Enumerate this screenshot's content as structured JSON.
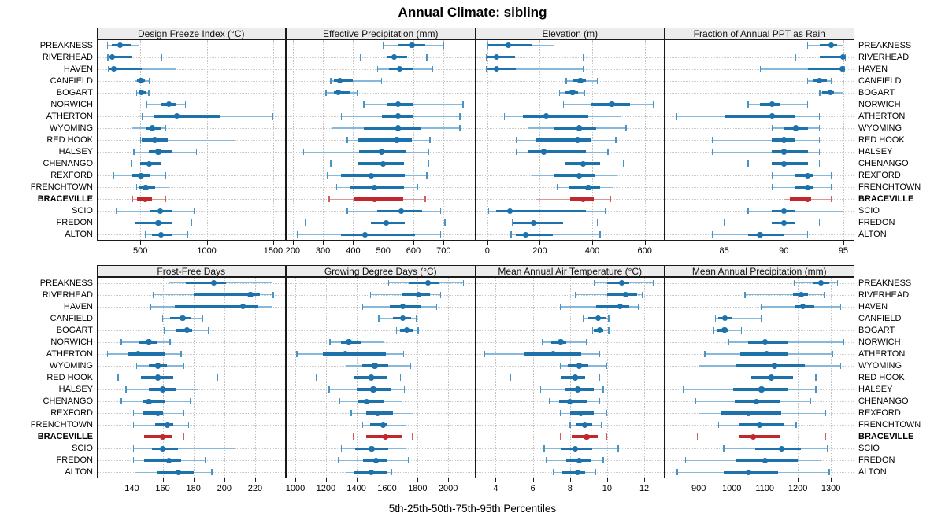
{
  "title": "Annual Climate: sibling",
  "caption": "5th-25th-50th-75th-95th Percentiles",
  "highlight_site": "BRACEVILLE",
  "colors": {
    "blue": "#1e72ac",
    "blue_thin": "#85b8da",
    "blue_cap": "#4a94c4",
    "red": "#c0282d",
    "red_thin": "#dd9793",
    "red_cap": "#cd5f5e",
    "strip_bg": "#ececec",
    "grid": "#c6c6c6",
    "border": "#1a1a1a",
    "text": "#000000"
  },
  "sites": [
    "PREAKNESS",
    "RIVERHEAD",
    "HAVEN",
    "CANFIELD",
    "BOGART",
    "NORWICH",
    "ATHERTON",
    "WYOMING",
    "RED HOOK",
    "HALSEY",
    "CHENANGO",
    "REXFORD",
    "FRENCHTOWN",
    "BRACEVILLE",
    "SCIO",
    "FREDON",
    "ALTON"
  ],
  "chart_data": {
    "type": "dotplot",
    "subtype": "percentile-intervals",
    "percentiles": [
      5,
      25,
      50,
      75,
      95
    ],
    "legend_position": "none",
    "grid": "dotted",
    "panels": [
      {
        "title": "Design Freeze Index (°C)",
        "row": 0,
        "col": 0,
        "xlim": [
          170,
          1595
        ],
        "ticks": [
          500,
          1000,
          1500
        ],
        "values": [
          [
            250,
            285,
            350,
            430,
            490
          ],
          [
            255,
            265,
            290,
            440,
            660
          ],
          [
            260,
            262,
            300,
            510,
            770
          ],
          [
            460,
            475,
            505,
            535,
            570
          ],
          [
            470,
            485,
            510,
            540,
            565
          ],
          [
            545,
            650,
            715,
            765,
            840
          ],
          [
            515,
            600,
            775,
            1100,
            1500
          ],
          [
            435,
            540,
            590,
            650,
            690
          ],
          [
            500,
            510,
            610,
            705,
            1215
          ],
          [
            450,
            565,
            635,
            735,
            925
          ],
          [
            430,
            500,
            565,
            650,
            800
          ],
          [
            300,
            435,
            505,
            575,
            690
          ],
          [
            470,
            495,
            540,
            610,
            715
          ],
          [
            440,
            475,
            535,
            585,
            690
          ],
          [
            320,
            575,
            650,
            740,
            905
          ],
          [
            345,
            455,
            635,
            735,
            885
          ],
          [
            540,
            585,
            655,
            735,
            860
          ]
        ]
      },
      {
        "title": "Effective Precipitation (mm)",
        "row": 0,
        "col": 1,
        "xlim": [
          177,
          805
        ],
        "ticks": [
          200,
          300,
          400,
          500,
          600,
          700
        ],
        "values": [
          [
            500,
            550,
            595,
            640,
            700
          ],
          [
            425,
            510,
            535,
            580,
            645
          ],
          [
            480,
            520,
            555,
            600,
            665
          ],
          [
            325,
            335,
            355,
            400,
            495
          ],
          [
            310,
            335,
            350,
            390,
            415
          ],
          [
            435,
            510,
            550,
            600,
            765
          ],
          [
            360,
            495,
            550,
            600,
            755
          ],
          [
            330,
            435,
            550,
            625,
            755
          ],
          [
            380,
            415,
            545,
            595,
            655
          ],
          [
            235,
            420,
            495,
            575,
            650
          ],
          [
            325,
            415,
            500,
            570,
            650
          ],
          [
            315,
            360,
            460,
            570,
            645
          ],
          [
            345,
            390,
            470,
            570,
            615
          ],
          [
            320,
            405,
            470,
            565,
            640
          ],
          [
            380,
            480,
            560,
            630,
            690
          ],
          [
            240,
            460,
            510,
            570,
            705
          ],
          [
            215,
            360,
            440,
            605,
            690
          ]
        ]
      },
      {
        "title": "Elevation (m)",
        "row": 0,
        "col": 2,
        "xlim": [
          -46,
          676
        ],
        "ticks": [
          0,
          200,
          400,
          600
        ],
        "values": [
          [
            0,
            5,
            80,
            170,
            255
          ],
          [
            -5,
            0,
            35,
            105,
            365
          ],
          [
            -5,
            0,
            35,
            110,
            365
          ],
          [
            300,
            325,
            355,
            375,
            420
          ],
          [
            275,
            295,
            325,
            345,
            370
          ],
          [
            290,
            395,
            475,
            545,
            635
          ],
          [
            65,
            135,
            225,
            385,
            510
          ],
          [
            155,
            255,
            350,
            415,
            530
          ],
          [
            110,
            185,
            345,
            395,
            490
          ],
          [
            110,
            155,
            215,
            375,
            460
          ],
          [
            155,
            295,
            365,
            430,
            520
          ],
          [
            170,
            255,
            350,
            410,
            495
          ],
          [
            265,
            310,
            385,
            430,
            480
          ],
          [
            185,
            315,
            365,
            405,
            470
          ],
          [
            5,
            35,
            85,
            375,
            450
          ],
          [
            95,
            100,
            175,
            290,
            420
          ],
          [
            90,
            110,
            145,
            250,
            430
          ]
        ]
      },
      {
        "title": "Fraction of Annual PPT as Rain",
        "row": 0,
        "col": 3,
        "xlim": [
          80,
          95.9
        ],
        "ticks": [
          85,
          90,
          95
        ],
        "values": [
          [
            92,
            93,
            94,
            94.5,
            95
          ],
          [
            91,
            93,
            95,
            95.1,
            95.2
          ],
          [
            88,
            92,
            94.9,
            95,
            95.1
          ],
          [
            92,
            92.4,
            93,
            93.6,
            94
          ],
          [
            93,
            93.2,
            93.9,
            94.2,
            95
          ],
          [
            87,
            88,
            89,
            89.7,
            92
          ],
          [
            81,
            85,
            89,
            91,
            93
          ],
          [
            89,
            90,
            91,
            92,
            93
          ],
          [
            84,
            89,
            90,
            91,
            93
          ],
          [
            84,
            89,
            90,
            92,
            93
          ],
          [
            87,
            89,
            90,
            92,
            93
          ],
          [
            89,
            91,
            92,
            92.5,
            94
          ],
          [
            89,
            91,
            92,
            92.5,
            94
          ],
          [
            90,
            90.5,
            92,
            92.3,
            94
          ],
          [
            87,
            89,
            90,
            91,
            95
          ],
          [
            85,
            89,
            90,
            91,
            93
          ],
          [
            84,
            87,
            88,
            90,
            92
          ]
        ]
      },
      {
        "title": "Frost-Free Days",
        "row": 1,
        "col": 0,
        "xlim": [
          117,
          240
        ],
        "ticks": [
          140,
          160,
          180,
          200,
          220
        ],
        "values": [
          [
            164,
            175,
            193,
            201,
            231
          ],
          [
            154,
            180,
            217,
            223,
            232
          ],
          [
            152,
            168,
            212,
            222,
            231
          ],
          [
            160,
            165,
            173,
            178,
            186
          ],
          [
            161,
            169,
            176,
            179,
            190
          ],
          [
            133,
            145,
            151,
            156,
            165
          ],
          [
            124,
            137,
            144,
            162,
            172
          ],
          [
            143,
            151,
            157,
            163,
            174
          ],
          [
            131,
            146,
            157,
            167,
            196
          ],
          [
            136,
            151,
            160,
            169,
            183
          ],
          [
            133,
            147,
            151,
            162,
            178
          ],
          [
            141,
            147,
            157,
            160,
            174
          ],
          [
            141,
            155,
            163,
            167,
            177
          ],
          [
            142,
            148,
            160,
            166,
            174
          ],
          [
            141,
            153,
            160,
            170,
            207
          ],
          [
            141,
            148,
            164,
            172,
            188
          ],
          [
            142,
            156,
            170,
            180,
            192
          ]
        ]
      },
      {
        "title": "Growing Degree Days (°C)",
        "row": 1,
        "col": 1,
        "xlim": [
          938,
          2177
        ],
        "ticks": [
          1000,
          1200,
          1400,
          1600,
          1800,
          2000
        ],
        "values": [
          [
            1610,
            1740,
            1870,
            1935,
            2100
          ],
          [
            1490,
            1700,
            1805,
            1880,
            1950
          ],
          [
            1440,
            1620,
            1705,
            1820,
            1925
          ],
          [
            1545,
            1640,
            1705,
            1755,
            1795
          ],
          [
            1660,
            1685,
            1730,
            1775,
            1805
          ],
          [
            1225,
            1300,
            1350,
            1430,
            1580
          ],
          [
            1010,
            1180,
            1325,
            1590,
            1710
          ],
          [
            1330,
            1440,
            1520,
            1610,
            1755
          ],
          [
            1135,
            1385,
            1495,
            1600,
            1690
          ],
          [
            1220,
            1400,
            1510,
            1630,
            1715
          ],
          [
            1290,
            1410,
            1465,
            1580,
            1700
          ],
          [
            1365,
            1465,
            1540,
            1640,
            1770
          ],
          [
            1440,
            1490,
            1575,
            1600,
            1725
          ],
          [
            1380,
            1465,
            1590,
            1700,
            1765
          ],
          [
            1300,
            1390,
            1500,
            1610,
            1725
          ],
          [
            1280,
            1445,
            1530,
            1595,
            1740
          ],
          [
            1330,
            1385,
            1495,
            1595,
            1630
          ]
        ]
      },
      {
        "title": "Mean Annual Air Temperature (°C)",
        "row": 1,
        "col": 2,
        "xlim": [
          2.9,
          13.1
        ],
        "ticks": [
          4,
          6,
          8,
          10,
          12
        ],
        "values": [
          [
            9.3,
            10,
            10.8,
            11.2,
            12.5
          ],
          [
            8.3,
            10,
            11,
            11.6,
            11.9
          ],
          [
            7.5,
            9.4,
            10.7,
            11.2,
            11.7
          ],
          [
            8.7,
            9,
            9.5,
            9.9,
            10.1
          ],
          [
            9.2,
            9.3,
            9.6,
            9.8,
            10.1
          ],
          [
            6.5,
            7,
            7.5,
            7.8,
            8.9
          ],
          [
            3.4,
            5.5,
            7.1,
            8.6,
            9.6
          ],
          [
            7.5,
            7.9,
            8.5,
            9,
            10
          ],
          [
            4.8,
            7.5,
            8.3,
            8.8,
            9.6
          ],
          [
            6.4,
            7.7,
            8.4,
            9.3,
            9.8
          ],
          [
            6.9,
            7.4,
            8,
            8.9,
            9.6
          ],
          [
            7.5,
            8,
            8.6,
            9.3,
            10
          ],
          [
            8,
            8.3,
            8.8,
            9.2,
            9.7
          ],
          [
            7.5,
            8.1,
            8.9,
            9.5,
            10
          ],
          [
            6.6,
            7.5,
            8.3,
            9.2,
            10.6
          ],
          [
            6.7,
            7.8,
            8.5,
            9.1,
            9.8
          ],
          [
            7.1,
            7.6,
            8.4,
            8.8,
            9.4
          ]
        ]
      },
      {
        "title": "Mean Annual Precipitation (mm)",
        "row": 1,
        "col": 3,
        "xlim": [
          797,
          1370
        ],
        "ticks": [
          900,
          1000,
          1100,
          1200,
          1300
        ],
        "values": [
          [
            1190,
            1245,
            1270,
            1295,
            1320
          ],
          [
            1040,
            1185,
            1210,
            1230,
            1280
          ],
          [
            1090,
            1190,
            1215,
            1250,
            1330
          ],
          [
            950,
            958,
            980,
            1000,
            1090
          ],
          [
            945,
            955,
            978,
            990,
            1030
          ],
          [
            990,
            1050,
            1100,
            1170,
            1340
          ],
          [
            918,
            1025,
            1105,
            1170,
            1305
          ],
          [
            900,
            1015,
            1130,
            1220,
            1330
          ],
          [
            955,
            1060,
            1120,
            1185,
            1255
          ],
          [
            852,
            1005,
            1090,
            1170,
            1255
          ],
          [
            890,
            1010,
            1075,
            1145,
            1240
          ],
          [
            900,
            965,
            1050,
            1150,
            1285
          ],
          [
            960,
            1020,
            1085,
            1160,
            1195
          ],
          [
            895,
            1020,
            1065,
            1145,
            1285
          ],
          [
            975,
            1070,
            1150,
            1210,
            1290
          ],
          [
            860,
            1015,
            1100,
            1200,
            1270
          ],
          [
            835,
            975,
            1050,
            1140,
            1295
          ]
        ]
      }
    ]
  }
}
